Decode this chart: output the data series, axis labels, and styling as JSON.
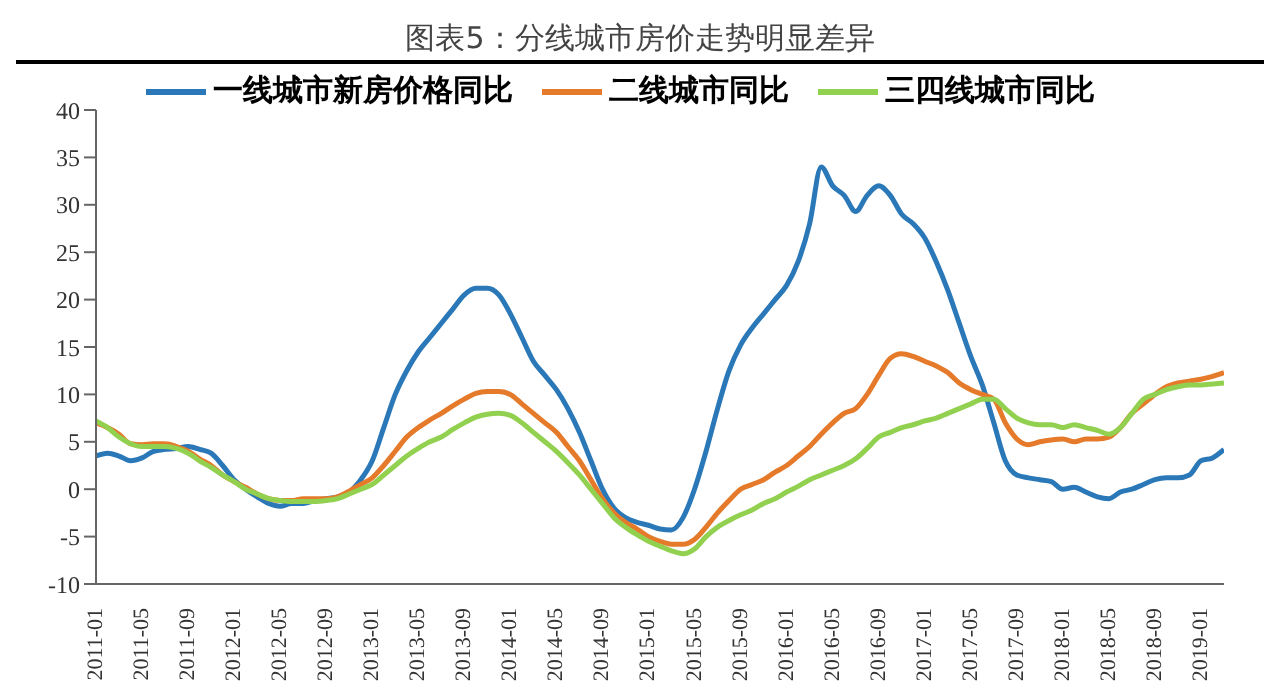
{
  "chart_data": {
    "type": "line",
    "title": "图表5：分线城市房价走势明显差异",
    "categories": [
      "2011-01",
      null,
      null,
      null,
      "2011-05",
      null,
      null,
      null,
      "2011-09",
      null,
      null,
      null,
      "2012-01",
      null,
      null,
      null,
      "2012-05",
      null,
      null,
      null,
      "2012-09",
      null,
      null,
      null,
      "2013-01",
      null,
      null,
      null,
      "2013-05",
      null,
      null,
      null,
      "2013-09",
      null,
      null,
      null,
      "2014-01",
      null,
      null,
      null,
      "2014-05",
      null,
      null,
      null,
      "2014-09",
      null,
      null,
      null,
      "2015-01",
      null,
      null,
      null,
      "2015-05",
      null,
      null,
      null,
      "2015-09",
      null,
      null,
      null,
      "2016-01",
      null,
      null,
      null,
      "2016-05",
      null,
      null,
      null,
      "2016-09",
      null,
      null,
      null,
      "2017-01",
      null,
      null,
      null,
      "2017-05",
      null,
      null,
      null,
      "2017-09",
      null,
      null,
      null,
      "2018-01",
      null,
      null,
      null,
      "2018-05",
      null,
      null,
      null,
      "2018-09",
      null,
      null,
      null,
      "2019-01",
      null,
      null
    ],
    "series": [
      {
        "name": "一线城市新房价格同比",
        "color": "#2a78b8",
        "values": [
          3.5,
          3.8,
          3.5,
          3.0,
          3.3,
          4.0,
          4.2,
          4.3,
          4.5,
          4.2,
          3.8,
          2.5,
          1.0,
          0,
          -0.8,
          -1.5,
          -1.8,
          -1.5,
          -1.5,
          -1.2,
          -1.0,
          -0.8,
          -0.3,
          1.0,
          3.0,
          6.5,
          10,
          12.5,
          14.5,
          16,
          17.5,
          19,
          20.5,
          21.2,
          21.2,
          20.5,
          18.5,
          16,
          13.5,
          12,
          10.5,
          8.5,
          6,
          3,
          0,
          -2,
          -3,
          -3.5,
          -3.8,
          -4.2,
          -4.3,
          -3,
          0,
          4,
          8.5,
          12.5,
          15.2,
          17,
          18.5,
          20,
          21.5,
          24,
          28,
          34,
          32,
          31,
          29.3,
          31,
          32,
          31,
          29,
          28,
          26.5,
          24,
          21,
          17.5,
          14,
          11,
          7,
          3,
          1.5,
          1.2,
          1,
          0.8,
          0,
          0.2,
          -0.3,
          -0.8,
          -1.0,
          -0.3,
          0,
          0.5,
          1,
          1.2,
          1.2,
          1.5,
          3,
          3.3,
          4.2
        ]
      },
      {
        "name": "二线城市同比",
        "color": "#e57a2a",
        "values": [
          7,
          6.5,
          5.8,
          4.8,
          4.7,
          4.8,
          4.8,
          4.5,
          4,
          3.2,
          2.5,
          1.5,
          0.8,
          0.2,
          -0.5,
          -1.0,
          -1.2,
          -1.2,
          -1.0,
          -1.0,
          -1.0,
          -0.8,
          -0.2,
          0.5,
          1.2,
          2.5,
          4,
          5.5,
          6.5,
          7.3,
          8,
          8.8,
          9.5,
          10.1,
          10.3,
          10.3,
          10,
          9,
          8,
          7,
          6,
          4.5,
          3,
          1,
          -1,
          -2.5,
          -3.5,
          -4.2,
          -5,
          -5.5,
          -5.8,
          -5.8,
          -5.3,
          -4,
          -2.5,
          -1.2,
          0,
          0.5,
          1,
          1.8,
          2.5,
          3.5,
          4.5,
          5.8,
          7,
          8,
          8.5,
          10,
          12,
          13.8,
          14.3,
          14,
          13.5,
          13,
          12.3,
          11.2,
          10.5,
          10,
          9.5,
          7,
          5.3,
          4.7,
          5,
          5.2,
          5.3,
          5.0,
          5.3,
          5.3,
          5.5,
          6.5,
          8,
          9,
          10,
          10.8,
          11.2,
          11.4,
          11.6,
          11.9,
          12.3
        ]
      },
      {
        "name": "三四线城市同比",
        "color": "#92d050",
        "values": [
          7.2,
          6.5,
          5.5,
          4.8,
          4.5,
          4.5,
          4.5,
          4.3,
          3.8,
          3,
          2.3,
          1.5,
          0.8,
          0,
          -0.5,
          -1,
          -1.2,
          -1.3,
          -1.3,
          -1.3,
          -1.2,
          -1,
          -0.5,
          0,
          0.5,
          1.5,
          2.5,
          3.5,
          4.3,
          5,
          5.5,
          6.3,
          7,
          7.6,
          7.9,
          8,
          7.8,
          7,
          6,
          5,
          4,
          2.8,
          1.5,
          0,
          -1.5,
          -3,
          -4,
          -4.8,
          -5.5,
          -6,
          -6.5,
          -6.8,
          -6.3,
          -5,
          -4,
          -3.3,
          -2.7,
          -2.2,
          -1.5,
          -1,
          -0.3,
          0.3,
          1,
          1.5,
          2,
          2.5,
          3.2,
          4.3,
          5.5,
          6,
          6.5,
          6.8,
          7.2,
          7.5,
          8,
          8.5,
          9,
          9.5,
          9.5,
          8.5,
          7.5,
          7,
          6.8,
          6.8,
          6.5,
          6.8,
          6.5,
          6.2,
          5.8,
          6.5,
          8,
          9.5,
          10,
          10.5,
          10.8,
          11,
          11,
          11.1,
          11.2
        ]
      }
    ],
    "ylim": [
      -10,
      40
    ],
    "yticks": [
      -10,
      -5,
      0,
      5,
      10,
      15,
      20,
      25,
      30,
      35,
      40
    ],
    "grid": false,
    "legend": "top",
    "marker": "none",
    "line_style": "solid"
  }
}
